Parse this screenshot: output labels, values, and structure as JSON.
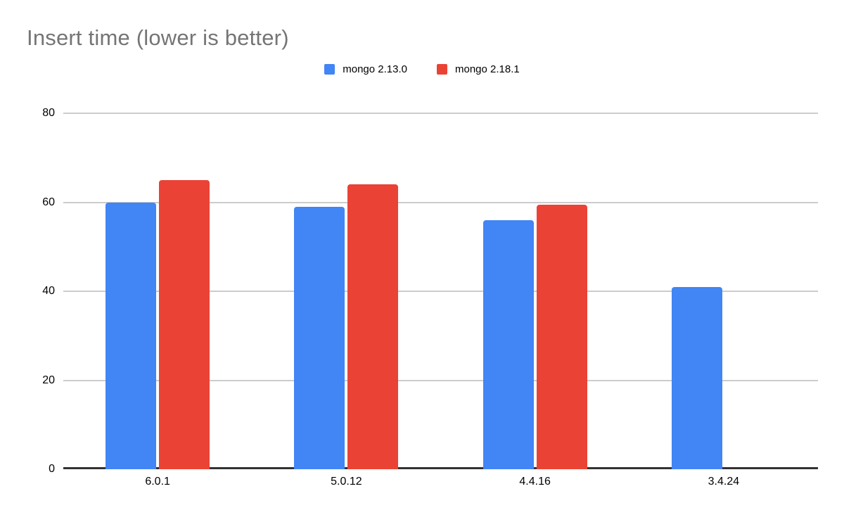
{
  "chart_data": {
    "type": "bar",
    "title": "Insert time (lower is better)",
    "categories": [
      "6.0.1",
      "5.0.12",
      "4.4.16",
      "3.4.24"
    ],
    "series": [
      {
        "name": "mongo 2.13.0",
        "color": "#4285F4",
        "values": [
          60,
          59,
          56,
          41
        ]
      },
      {
        "name": "mongo 2.18.1",
        "color": "#EA4335",
        "values": [
          65,
          64,
          59.5,
          null
        ]
      }
    ],
    "xlabel": "",
    "ylabel": "",
    "ylim": [
      0,
      80
    ],
    "yticks": [
      0,
      20,
      40,
      60,
      80
    ],
    "grid": true,
    "legend_position": "top"
  },
  "style": {
    "title_color": "#757575",
    "grid_color": "#cccccc",
    "axis_color": "#333333",
    "tick_label_color": "#000000",
    "legend_text_color": "#000000",
    "background": "#ffffff"
  }
}
